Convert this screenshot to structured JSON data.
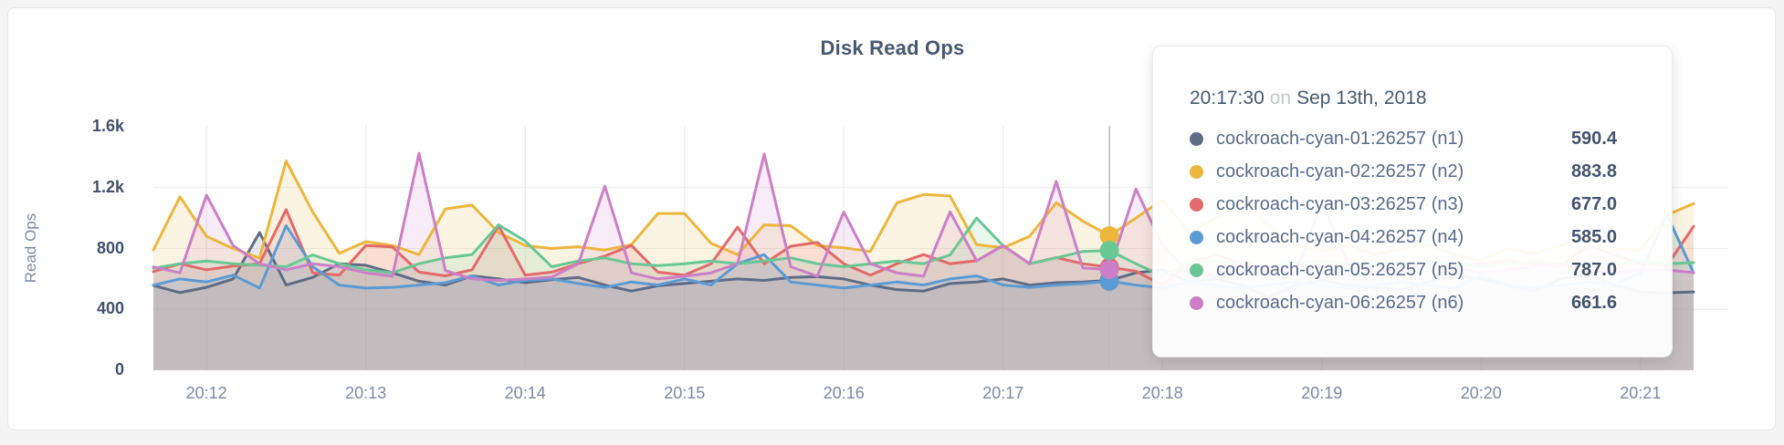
{
  "page": {
    "background": "#f4f4f5"
  },
  "chart_data": {
    "type": "area",
    "title": "Disk Read Ops",
    "ylabel": "Read Ops",
    "ylim": [
      0,
      1600
    ],
    "grid": true,
    "legend_position": "none",
    "y_ticks": [
      {
        "label": "0",
        "value": 0
      },
      {
        "label": "400",
        "value": 400
      },
      {
        "label": "800",
        "value": 800
      },
      {
        "label": "1.2k",
        "value": 1200
      },
      {
        "label": "1.6k",
        "value": 1600
      }
    ],
    "y_gridlines": [
      400,
      800,
      1200
    ],
    "x_ticks": [
      {
        "label": "20:12",
        "index": 2
      },
      {
        "label": "20:13",
        "index": 8
      },
      {
        "label": "20:14",
        "index": 14
      },
      {
        "label": "20:15",
        "index": 20
      },
      {
        "label": "20:16",
        "index": 26
      },
      {
        "label": "20:17",
        "index": 32
      },
      {
        "label": "20:18",
        "index": 38
      },
      {
        "label": "20:19",
        "index": 44
      },
      {
        "label": "20:20",
        "index": 50
      },
      {
        "label": "20:21",
        "index": 56
      }
    ],
    "hover_index": 36,
    "series": [
      {
        "name": "cockroach-cyan-01:26257 (n1)",
        "color": "#5F6C87",
        "values": [
          557,
          510,
          545,
          600,
          905,
          560,
          610,
          700,
          690,
          640,
          585,
          560,
          620,
          600,
          575,
          595,
          610,
          560,
          520,
          555,
          570,
          585,
          600,
          590,
          610,
          615,
          600,
          560,
          530,
          520,
          570,
          580,
          600,
          560,
          575,
          580,
          590.4,
          640,
          660,
          580,
          600,
          560,
          480,
          560,
          590,
          560,
          545,
          530,
          580,
          620,
          600,
          560,
          520,
          600,
          630,
          560,
          515,
          509,
          515
        ]
      },
      {
        "name": "cockroach-cyan-02:26257 (n2)",
        "color": "#EDB63D",
        "values": [
          790,
          1140,
          880,
          800,
          737,
          1375,
          1040,
          768,
          845,
          820,
          760,
          1060,
          1085,
          905,
          820,
          800,
          812,
          790,
          825,
          1030,
          1030,
          835,
          760,
          955,
          950,
          820,
          805,
          780,
          1100,
          1155,
          1145,
          825,
          805,
          880,
          1100,
          980,
          883.8,
          1000,
          1120,
          905,
          1000,
          1100,
          950,
          820,
          785,
          825,
          760,
          800,
          825,
          760,
          720,
          800,
          765,
          820,
          870,
          800,
          790,
          1020,
          1095
        ]
      },
      {
        "name": "cockroach-cyan-03:26257 (n3)",
        "color": "#E26A6A",
        "values": [
          648,
          700,
          660,
          685,
          700,
          1055,
          640,
          625,
          820,
          810,
          645,
          620,
          660,
          950,
          625,
          645,
          700,
          750,
          820,
          645,
          625,
          700,
          940,
          700,
          815,
          840,
          700,
          625,
          700,
          760,
          700,
          720,
          820,
          700,
          740,
          700,
          677,
          650,
          560,
          700,
          760,
          700,
          650,
          700,
          720,
          700,
          680,
          700,
          720,
          680,
          700,
          720,
          700,
          680,
          820,
          760,
          700,
          690,
          945
        ]
      },
      {
        "name": "cockroach-cyan-04:26257 (n4)",
        "color": "#5B9BD3",
        "values": [
          559,
          600,
          580,
          625,
          540,
          950,
          680,
          560,
          540,
          545,
          560,
          575,
          620,
          560,
          590,
          600,
          570,
          545,
          580,
          560,
          600,
          560,
          700,
          760,
          580,
          560,
          540,
          560,
          580,
          560,
          600,
          620,
          560,
          545,
          560,
          570,
          585,
          560,
          540,
          580,
          560,
          540,
          560,
          580,
          560,
          540,
          560,
          580,
          560,
          540,
          620,
          560,
          540,
          560,
          580,
          560,
          640,
          1020,
          640
        ]
      },
      {
        "name": "cockroach-cyan-05:26257 (n5)",
        "color": "#69C795",
        "values": [
          670,
          700,
          718,
          700,
          690,
          680,
          758,
          700,
          660,
          640,
          700,
          738,
          760,
          955,
          850,
          680,
          718,
          738,
          700,
          688,
          700,
          718,
          700,
          718,
          738,
          700,
          680,
          700,
          718,
          700,
          758,
          1000,
          818,
          700,
          738,
          780,
          787,
          700,
          620,
          700,
          718,
          700,
          680,
          700,
          718,
          700,
          688,
          700,
          718,
          700,
          680,
          700,
          718,
          700,
          688,
          700,
          718,
          700,
          707
        ]
      },
      {
        "name": "cockroach-cyan-06:26257 (n6)",
        "color": "#CC7FC7",
        "values": [
          679,
          640,
          1150,
          820,
          700,
          660,
          700,
          680,
          640,
          618,
          1425,
          655,
          600,
          590,
          600,
          612,
          700,
          1210,
          640,
          600,
          618,
          640,
          700,
          1420,
          680,
          618,
          1040,
          700,
          640,
          618,
          1040,
          720,
          818,
          700,
          1240,
          672,
          661.6,
          1190,
          820,
          640,
          618,
          700,
          680,
          640,
          1100,
          700,
          640,
          660,
          700,
          680,
          640,
          660,
          680,
          700,
          660,
          640,
          660,
          659,
          641
        ]
      }
    ]
  },
  "tooltip": {
    "time": "20:17:30",
    "preposition": "on",
    "date": "Sep 13th, 2018",
    "rows": [
      {
        "name": "cockroach-cyan-01:26257 (n1)",
        "value": "590.4",
        "color": "#5F6C87"
      },
      {
        "name": "cockroach-cyan-02:26257 (n2)",
        "value": "883.8",
        "color": "#EDB63D"
      },
      {
        "name": "cockroach-cyan-03:26257 (n3)",
        "value": "677.0",
        "color": "#E26A6A"
      },
      {
        "name": "cockroach-cyan-04:26257 (n4)",
        "value": "585.0",
        "color": "#5B9BD3"
      },
      {
        "name": "cockroach-cyan-05:26257 (n5)",
        "value": "787.0",
        "color": "#69C795"
      },
      {
        "name": "cockroach-cyan-06:26257 (n6)",
        "value": "661.6",
        "color": "#CC7FC7"
      }
    ]
  },
  "colors": {
    "grid_horizontal": "#ececec",
    "grid_vertical": "#e8e8e8",
    "crosshair": "#b9bdc3",
    "title_text": "#475872",
    "y_tick_text": "#43506b",
    "x_tick_text": "#7e88a2"
  }
}
